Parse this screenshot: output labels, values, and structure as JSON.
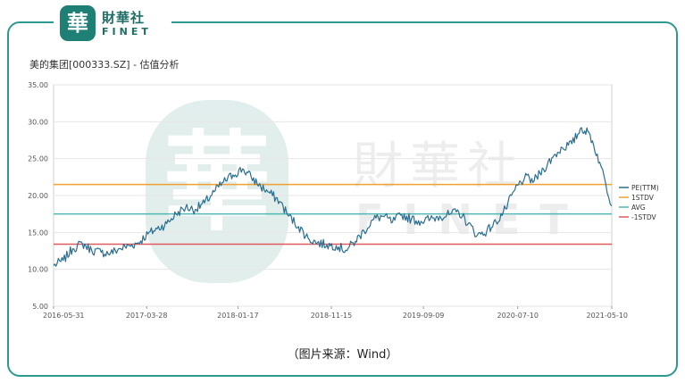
{
  "brand": {
    "mark": "華",
    "name_cn": "財華社",
    "name_en": "FINET"
  },
  "watermark": {
    "mark": "華",
    "name_cn": "財華社",
    "name_en": "FINET"
  },
  "caption": "（图片来源：Wind）",
  "colors": {
    "frame": "#2e9a8f",
    "pe": "#2b6e8f",
    "plus_1std": "#f0a030",
    "avg": "#4fb8b0",
    "minus_1std": "#e05a5a"
  },
  "chart_data": {
    "type": "line",
    "title": "美的集团[000333.SZ] - 估值分析",
    "xlabel": "",
    "ylabel": "",
    "ylim": [
      5,
      35
    ],
    "yticks": [
      "35.00",
      "30.00",
      "25.00",
      "20.00",
      "15.00",
      "10.00",
      "5.00"
    ],
    "xticks": [
      "2016-05-31",
      "2017-03-28",
      "2018-01-17",
      "2018-11-15",
      "2019-09-09",
      "2020-07-10",
      "2021-05-10"
    ],
    "xlim": [
      "2016-05-31",
      "2021-05-10"
    ],
    "grid": "horizontal",
    "legend": "right",
    "series": [
      {
        "name": "PE(TTM)",
        "color": "#2b6e8f",
        "x": [
          "2016-05-31",
          "2016-07-01",
          "2016-08-01",
          "2016-09-01",
          "2016-10-01",
          "2016-11-01",
          "2016-12-01",
          "2017-01-01",
          "2017-02-01",
          "2017-03-01",
          "2017-04-01",
          "2017-05-01",
          "2017-06-01",
          "2017-07-01",
          "2017-08-01",
          "2017-09-01",
          "2017-10-01",
          "2017-11-01",
          "2017-12-01",
          "2018-01-01",
          "2018-02-01",
          "2018-03-01",
          "2018-04-01",
          "2018-05-01",
          "2018-06-01",
          "2018-07-01",
          "2018-08-01",
          "2018-09-01",
          "2018-10-01",
          "2018-11-01",
          "2018-12-01",
          "2019-01-01",
          "2019-02-01",
          "2019-03-01",
          "2019-04-01",
          "2019-05-01",
          "2019-06-01",
          "2019-07-01",
          "2019-08-01",
          "2019-09-01",
          "2019-10-01",
          "2019-11-01",
          "2019-12-01",
          "2020-01-01",
          "2020-02-01",
          "2020-03-01",
          "2020-04-01",
          "2020-05-01",
          "2020-06-01",
          "2020-07-01",
          "2020-08-01",
          "2020-09-01",
          "2020-10-01",
          "2020-11-01",
          "2020-12-01",
          "2021-01-01",
          "2021-02-01",
          "2021-03-01",
          "2021-04-01",
          "2021-05-10"
        ],
        "values": [
          10.5,
          11.2,
          12.8,
          13.5,
          12.6,
          12.3,
          12.2,
          12.8,
          13.2,
          13.6,
          14.8,
          15.5,
          16.2,
          17.5,
          18.4,
          18.1,
          19.0,
          20.5,
          21.8,
          22.8,
          23.6,
          22.5,
          21.2,
          20.3,
          19.2,
          17.2,
          15.8,
          14.2,
          13.6,
          13.3,
          13.2,
          12.6,
          13.8,
          15.2,
          16.8,
          17.2,
          16.4,
          17.4,
          16.8,
          16.5,
          16.8,
          17.2,
          17.4,
          17.8,
          16.2,
          14.6,
          15.2,
          16.4,
          18.2,
          20.8,
          22.4,
          22.0,
          23.6,
          25.2,
          26.5,
          27.0,
          29.2,
          28.2,
          24.5,
          18.6
        ]
      },
      {
        "name": "1STDV",
        "color": "#f0a030",
        "value": 21.5
      },
      {
        "name": "AVG",
        "color": "#4fb8b0",
        "value": 17.5
      },
      {
        "name": "-1STDV",
        "color": "#e05a5a",
        "value": 13.4
      }
    ]
  }
}
